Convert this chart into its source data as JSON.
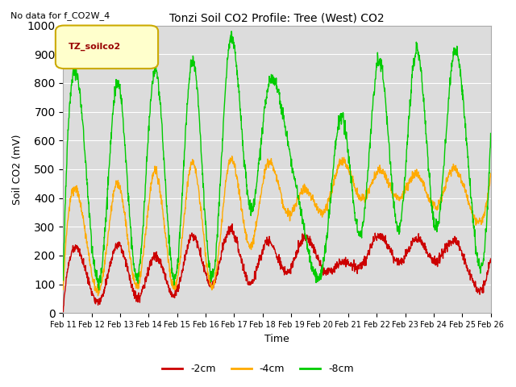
{
  "title": "Tonzi Soil CO2 Profile: Tree (West) CO2",
  "no_data_text": "No data for f_CO2W_4",
  "ylabel": "Soil CO2 (mV)",
  "xlabel": "Time",
  "ylim": [
    0,
    1000
  ],
  "bg_color": "#dcdcdc",
  "fig_bg": "#ffffff",
  "legend_title": "TZ_soilco2",
  "legend_box_color": "#ffffcc",
  "legend_box_edge": "#ccaa00",
  "series_colors": {
    "red": "#cc0000",
    "orange": "#ffaa00",
    "green": "#00cc00"
  },
  "series_lw": 1.0,
  "xtick_labels": [
    "Feb 11",
    "Feb 12",
    "Feb 13",
    "Feb 14",
    "Feb 15",
    "Feb 16",
    "Feb 17",
    "Feb 18",
    "Feb 19",
    "Feb 20",
    "Feb 21",
    "Feb 22",
    "Feb 23",
    "Feb 24",
    "Feb 25",
    "Feb 26"
  ],
  "n_days": 16,
  "yticks": [
    0,
    100,
    200,
    300,
    400,
    500,
    600,
    700,
    800,
    900,
    1000
  ],
  "green_peaks": [
    120,
    750,
    120,
    800,
    120,
    845,
    120,
    880,
    120,
    930,
    370,
    750,
    605,
    300,
    200,
    690,
    290,
    890,
    300,
    920,
    300,
    900,
    290,
    625
  ],
  "orange_peaks": [
    100,
    400,
    100,
    460,
    100,
    500,
    100,
    530,
    100,
    530,
    240,
    520,
    350,
    430,
    350,
    520,
    390,
    490,
    390,
    475,
    360,
    490,
    320,
    470
  ],
  "red_peaks": [
    20,
    220,
    55,
    250,
    55,
    200,
    60,
    265,
    95,
    290,
    105,
    250,
    140,
    260,
    140,
    180,
    170,
    270,
    170,
    250,
    175,
    250,
    100,
    195
  ]
}
